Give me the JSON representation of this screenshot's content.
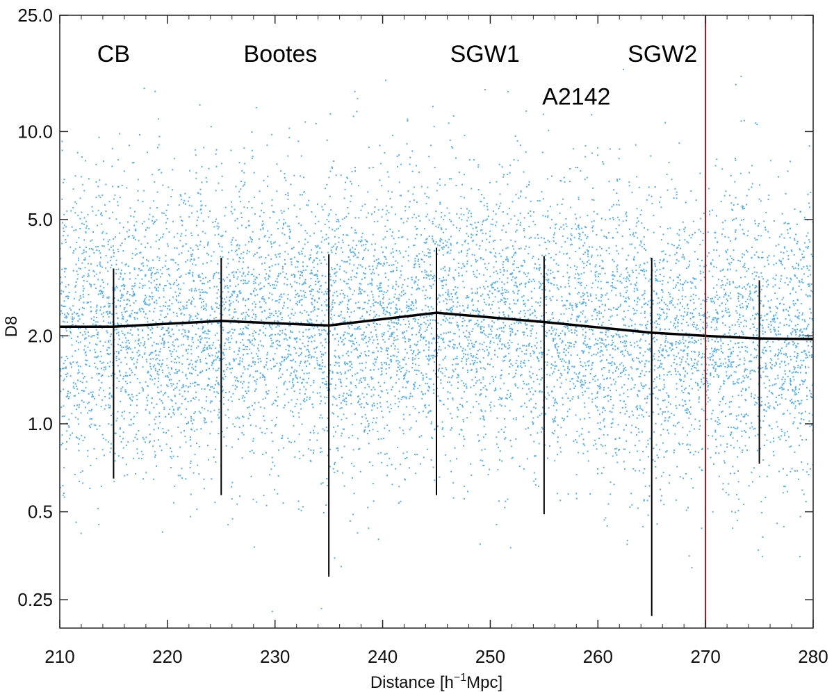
{
  "chart_data": {
    "type": "scatter",
    "xlabel": "Distance [h",
    "xlabel_sup": "−1",
    "xlabel_suffix": "Mpc]",
    "ylabel": "D8",
    "xlim": [
      210,
      280
    ],
    "ylim": [
      0.2,
      25.0
    ],
    "yscale": "log",
    "x_ticks": [
      210,
      220,
      230,
      240,
      250,
      260,
      270,
      280
    ],
    "x_tick_labels": [
      "210",
      "220",
      "230",
      "240",
      "250",
      "260",
      "270",
      "280"
    ],
    "y_ticks": [
      0.25,
      0.5,
      1.0,
      2.0,
      5.0,
      10.0,
      25.0
    ],
    "y_tick_labels": [
      "0.25",
      "0.5",
      "1.0",
      "2.0",
      "5.0",
      "10.0",
      "25.0"
    ],
    "grid": false,
    "colors": {
      "scatter": "#52b0ee",
      "median_line": "#000000",
      "boundary_line": "#8b1a1a"
    },
    "scatter_description": "Dense cloud of several thousand galaxies with D8 mostly between about 0.3 and 15 across 210-280 h^-1 Mpc",
    "median_line": {
      "x": [
        210,
        215,
        225,
        235,
        245,
        255,
        265,
        270,
        275,
        280
      ],
      "y": [
        2.15,
        2.15,
        2.25,
        2.17,
        2.4,
        2.23,
        2.05,
        2.0,
        1.96,
        1.95
      ]
    },
    "error_bars": [
      {
        "x": 215,
        "low": 0.65,
        "high": 3.4
      },
      {
        "x": 225,
        "low": 0.57,
        "high": 3.7
      },
      {
        "x": 235,
        "low": 0.3,
        "high": 3.8
      },
      {
        "x": 245,
        "low": 0.57,
        "high": 4.0
      },
      {
        "x": 255,
        "low": 0.49,
        "high": 3.75
      },
      {
        "x": 265,
        "low": 0.22,
        "high": 3.7
      },
      {
        "x": 275,
        "low": 0.73,
        "high": 3.1
      }
    ],
    "vertical_line_x": 270,
    "annotations": [
      {
        "text": "CB",
        "x": 215.0,
        "y": 18.5
      },
      {
        "text": "Bootes",
        "x": 230.5,
        "y": 18.5
      },
      {
        "text": "SGW1",
        "x": 249.5,
        "y": 18.5
      },
      {
        "text": "SGW2",
        "x": 266.0,
        "y": 18.5
      },
      {
        "text": "A2142",
        "x": 258.0,
        "y": 13.2
      }
    ]
  }
}
